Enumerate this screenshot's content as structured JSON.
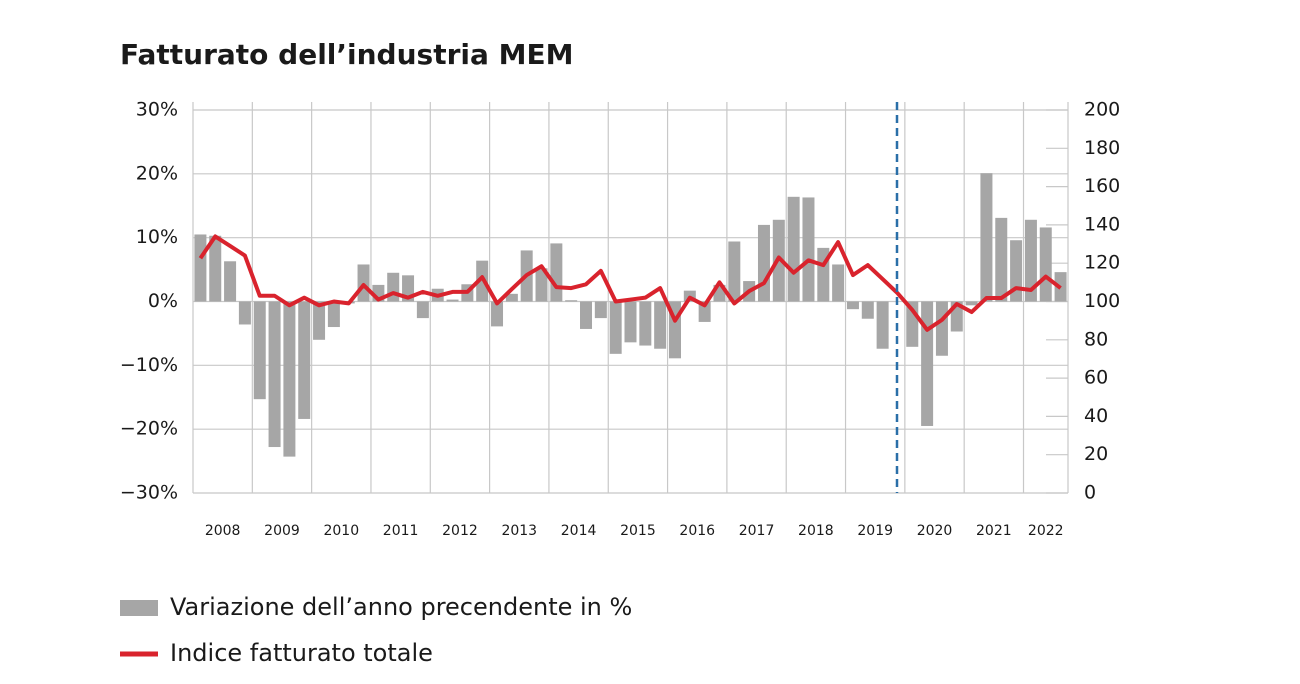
{
  "chart_data": {
    "type": "bar_line",
    "title": "Fatturato dell’industria MEM",
    "categories": [
      "2008",
      null,
      null,
      null,
      "2009",
      null,
      null,
      null,
      "2010",
      null,
      null,
      null,
      "2011",
      null,
      null,
      null,
      "2012",
      null,
      null,
      null,
      "2013",
      null,
      null,
      null,
      "2014",
      null,
      null,
      null,
      "2015",
      null,
      null,
      null,
      "2016",
      null,
      null,
      null,
      "2017",
      null,
      null,
      null,
      "2018",
      null,
      null,
      null,
      "2019",
      null,
      null,
      null,
      "2020",
      null,
      null,
      null,
      "2021",
      null,
      null,
      null,
      "2022",
      null,
      null
    ],
    "series": [
      {
        "name": "Variazione dell’anno precendente in %",
        "type": "bar",
        "color": "#a6a6a6",
        "values": [
          10.5,
          10.3,
          6.3,
          -3.6,
          -15.3,
          -22.8,
          -24.3,
          -18.4,
          -6.0,
          -4.0,
          -0.3,
          5.8,
          2.6,
          4.5,
          4.1,
          -2.6,
          2.0,
          0.3,
          2.7,
          6.4,
          -3.9,
          1.2,
          8.0,
          5.2,
          9.1,
          0.2,
          -4.3,
          -2.6,
          -8.2,
          -6.4,
          -6.9,
          -7.4,
          -8.9,
          1.7,
          -3.2,
          2.6,
          9.4,
          3.2,
          12.0,
          12.8,
          16.4,
          16.3,
          8.4,
          5.8,
          -1.2,
          -2.7,
          -7.4,
          0.0,
          -7.1,
          -19.5,
          -8.5,
          -4.7,
          -0.6,
          20.1,
          13.1,
          9.6,
          12.8,
          11.6,
          4.6
        ]
      },
      {
        "name": "Indice fatturato totale",
        "type": "line",
        "axis": "y2",
        "color": "#d9232d",
        "values": [
          122.6,
          134,
          129,
          124,
          103,
          103,
          98,
          102,
          98,
          100,
          99,
          108.6,
          101,
          104.4,
          102,
          105,
          103,
          105,
          105,
          112.7,
          99,
          106.5,
          113.8,
          118.4,
          107.5,
          107,
          109,
          116,
          100,
          101,
          102,
          107,
          90,
          102,
          98,
          110,
          99,
          105.4,
          109.6,
          123,
          115,
          121.5,
          119,
          131,
          113.8,
          119,
          111.7,
          104.4,
          95.6,
          85.2,
          90.4,
          98.7,
          94.5,
          101.8,
          101.8,
          107,
          106,
          113,
          107
        ]
      }
    ],
    "ylim": [
      -30,
      30
    ],
    "yticks": [
      {
        "value": -30,
        "label": "−30%"
      },
      {
        "value": -20,
        "label": "−20%"
      },
      {
        "value": -10,
        "label": "−10%"
      },
      {
        "value": 0,
        "label": "0%"
      },
      {
        "value": 10,
        "label": "10%"
      },
      {
        "value": 20,
        "label": "20%"
      },
      {
        "value": 30,
        "label": "30%"
      }
    ],
    "y2lim": [
      0,
      200
    ],
    "y2ticks": [
      0,
      20,
      40,
      60,
      80,
      100,
      120,
      140,
      160,
      180,
      200
    ],
    "grid": true
  }
}
